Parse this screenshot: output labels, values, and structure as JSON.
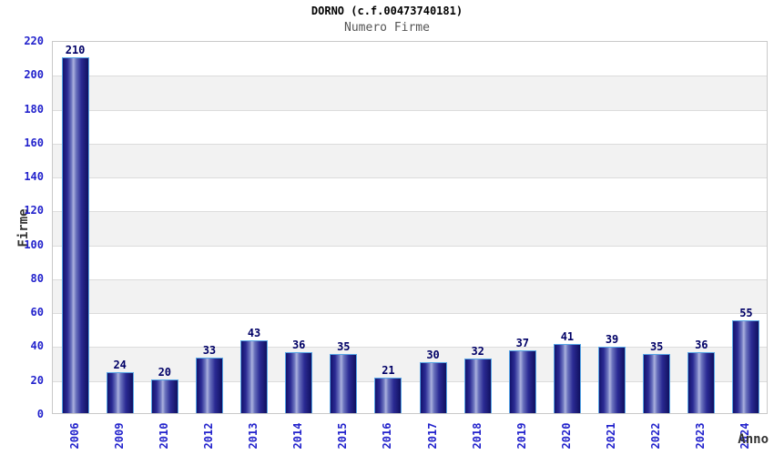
{
  "chart_data": {
    "type": "bar",
    "title": "DORNO (c.f.00473740181)",
    "subtitle": "Numero Firme",
    "xlabel": "Anno",
    "ylabel": "Firme",
    "categories": [
      "2006",
      "2009",
      "2010",
      "2012",
      "2013",
      "2014",
      "2015",
      "2016",
      "2017",
      "2018",
      "2019",
      "2020",
      "2021",
      "2022",
      "2023",
      "2024"
    ],
    "values": [
      210,
      24,
      20,
      33,
      43,
      36,
      35,
      21,
      30,
      32,
      37,
      41,
      39,
      35,
      36,
      55
    ],
    "ylim": [
      0,
      220
    ],
    "ytick_step": 20,
    "grid": "alternating-horizontal-bands",
    "legend": "none",
    "colors": {
      "bar_edge_dark": "#13136d",
      "bar_mid": "#2b2b94",
      "bar_highlight": "#aab0de",
      "bar_border": "#58a6e6",
      "tick_label_blue": "#2222cc",
      "value_label_navy": "#000066",
      "band_gray": "#f2f2f2",
      "band_white": "#ffffff",
      "grid_line": "#dcdcdc",
      "plot_border": "#c9c9c9",
      "title_color": "#000000",
      "subtitle_color": "#555555",
      "axis_title_color": "#333333"
    }
  }
}
